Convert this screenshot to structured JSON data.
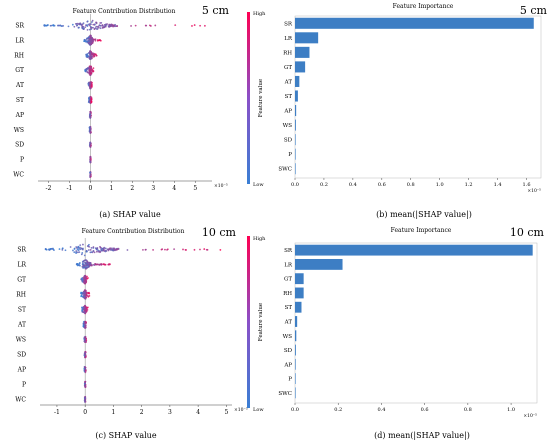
{
  "colors": {
    "low": "#3a7fd4",
    "high": "#ff0052",
    "bar": "#3d7ec4",
    "axis": "#444444"
  },
  "chart_data": [
    {
      "type": "scatter",
      "title": "Feature Contribution Distribution",
      "depth_label": "5 cm",
      "caption": "(a) SHAP value",
      "features": [
        "SR",
        "LR",
        "RH",
        "GT",
        "AT",
        "ST",
        "AP",
        "WS",
        "SD",
        "P",
        "WC"
      ],
      "xticks": [
        "-2",
        "-1",
        "0",
        "1",
        "2",
        "3",
        "4",
        "5"
      ],
      "xlim": [
        -2.5,
        5.8
      ],
      "exponent": "×10⁻⁵",
      "colorbar": {
        "label": "Feature value",
        "high": "High",
        "low": "Low"
      },
      "spread": [
        {
          "feature": "SR",
          "min": -2.2,
          "max": 5.5,
          "width": 1.0
        },
        {
          "feature": "LR",
          "min": -0.3,
          "max": 0.5,
          "width": 0.8
        },
        {
          "feature": "RH",
          "min": -0.2,
          "max": 0.3,
          "width": 0.6
        },
        {
          "feature": "GT",
          "min": -0.25,
          "max": 0.15,
          "width": 0.7
        },
        {
          "feature": "AT",
          "min": -0.1,
          "max": 0.08,
          "width": 0.35
        },
        {
          "feature": "ST",
          "min": -0.08,
          "max": 0.06,
          "width": 0.3
        },
        {
          "feature": "AP",
          "min": -0.04,
          "max": 0.04,
          "width": 0.2
        },
        {
          "feature": "WS",
          "min": -0.04,
          "max": 0.04,
          "width": 0.2
        },
        {
          "feature": "SD",
          "min": -0.03,
          "max": 0.03,
          "width": 0.15
        },
        {
          "feature": "P",
          "min": -0.02,
          "max": 0.02,
          "width": 0.12
        },
        {
          "feature": "WC",
          "min": -0.02,
          "max": 0.02,
          "width": 0.12
        }
      ]
    },
    {
      "type": "bar",
      "title": "Feature Importance",
      "depth_label": "5 cm",
      "caption": "(b) mean(|SHAP value|)",
      "categories": [
        "SR",
        "LR",
        "RH",
        "GT",
        "AT",
        "ST",
        "AP",
        "WS",
        "SD",
        "P",
        "SWC"
      ],
      "values": [
        1.65,
        0.16,
        0.1,
        0.07,
        0.03,
        0.02,
        0.008,
        0.006,
        0.004,
        0.002,
        0.001
      ],
      "xticks": [
        "0.0",
        "0.2",
        "0.4",
        "0.6",
        "0.8",
        "1.0",
        "1.2",
        "1.4",
        "1.6"
      ],
      "xlim": [
        0,
        1.7
      ],
      "exponent": "×10⁻⁵"
    },
    {
      "type": "scatter",
      "title": "Feature Contribution Distribution",
      "depth_label": "10 cm",
      "caption": "(c) SHAP value",
      "features": [
        "SR",
        "LR",
        "GT",
        "RH",
        "ST",
        "AT",
        "WS",
        "SD",
        "AP",
        "P",
        "WC"
      ],
      "xticks": [
        "-1",
        "0",
        "1",
        "2",
        "3",
        "4",
        "5"
      ],
      "xlim": [
        -1.6,
        5.2
      ],
      "exponent": "×10⁻⁵",
      "colorbar": {
        "label": "Feature value",
        "high": "High",
        "low": "Low"
      },
      "spread": [
        {
          "feature": "SR",
          "min": -1.4,
          "max": 4.9,
          "width": 1.0
        },
        {
          "feature": "LR",
          "min": -0.3,
          "max": 0.9,
          "width": 0.8
        },
        {
          "feature": "GT",
          "min": -0.15,
          "max": 0.1,
          "width": 0.5
        },
        {
          "feature": "RH",
          "min": -0.15,
          "max": 0.15,
          "width": 0.55
        },
        {
          "feature": "ST",
          "min": -0.12,
          "max": 0.1,
          "width": 0.45
        },
        {
          "feature": "AT",
          "min": -0.06,
          "max": 0.05,
          "width": 0.3
        },
        {
          "feature": "WS",
          "min": -0.04,
          "max": 0.04,
          "width": 0.2
        },
        {
          "feature": "SD",
          "min": -0.03,
          "max": 0.03,
          "width": 0.15
        },
        {
          "feature": "AP",
          "min": -0.03,
          "max": 0.03,
          "width": 0.15
        },
        {
          "feature": "P",
          "min": -0.02,
          "max": 0.02,
          "width": 0.12
        },
        {
          "feature": "WC",
          "min": -0.02,
          "max": 0.02,
          "width": 0.12
        }
      ]
    },
    {
      "type": "bar",
      "title": "Feature Importance",
      "depth_label": "10 cm",
      "caption": "(d) mean(|SHAP value|)",
      "categories": [
        "SR",
        "LR",
        "GT",
        "RH",
        "ST",
        "AT",
        "WS",
        "SD",
        "AP",
        "P",
        "SWC"
      ],
      "values": [
        1.1,
        0.22,
        0.04,
        0.04,
        0.03,
        0.01,
        0.006,
        0.004,
        0.003,
        0.002,
        0.001
      ],
      "xticks": [
        "0.0",
        "0.2",
        "0.4",
        "0.6",
        "0.8",
        "1.0"
      ],
      "xlim": [
        0,
        1.12
      ],
      "exponent": "×10⁻⁵"
    }
  ]
}
